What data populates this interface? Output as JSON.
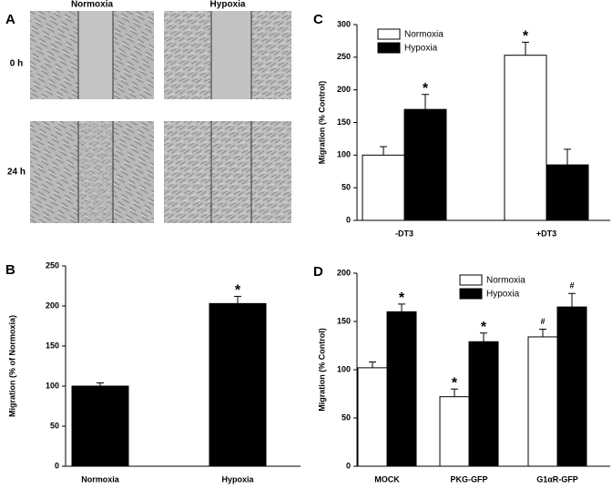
{
  "panel_labels": [
    "A",
    "B",
    "C",
    "D"
  ],
  "image_panel": {
    "columns": [
      "Normoxia",
      "Hypoxia"
    ],
    "rows": [
      "0 h",
      "24 h"
    ]
  },
  "chart_data": [
    {
      "type": "bar",
      "y_label": "Migration (% of Normoxia)",
      "categories": [
        "Normoxia",
        "Hypoxia"
      ],
      "values": [
        100,
        203
      ],
      "errors": [
        4,
        9
      ],
      "annotations": [
        null,
        "*"
      ],
      "color": "#000000",
      "ylim": [
        0,
        250
      ],
      "yticks": [
        0,
        50,
        100,
        150,
        200,
        250
      ]
    },
    {
      "type": "bar",
      "y_label": "Migration (% Control)",
      "categories": [
        "-DT3",
        "+DT3"
      ],
      "series": [
        {
          "name": "Normoxia",
          "color": "#ffffff",
          "values": [
            100,
            253
          ],
          "errors": [
            13,
            20
          ],
          "annotations": [
            null,
            "*"
          ]
        },
        {
          "name": "Hypoxia",
          "color": "#000000",
          "values": [
            170,
            85
          ],
          "errors": [
            23,
            24
          ],
          "annotations": [
            "*",
            null
          ]
        }
      ],
      "ylim": [
        0,
        300
      ],
      "yticks": [
        0,
        50,
        100,
        150,
        200,
        250,
        300
      ],
      "legend": "upper left"
    },
    {
      "type": "bar",
      "y_label": "Migration (% Control)",
      "categories": [
        "MOCK",
        "PKG-GFP",
        "G1αR-GFP"
      ],
      "series": [
        {
          "name": "Normoxia",
          "color": "#ffffff",
          "values": [
            102,
            72,
            134
          ],
          "errors": [
            6,
            8,
            8
          ],
          "annotations": [
            null,
            "*",
            "#"
          ]
        },
        {
          "name": "Hypoxia",
          "color": "#000000",
          "values": [
            160,
            129,
            165
          ],
          "errors": [
            8,
            9,
            14
          ],
          "annotations": [
            "*",
            "*",
            "#"
          ]
        }
      ],
      "ylim": [
        0,
        200
      ],
      "yticks": [
        0,
        50,
        100,
        150,
        200
      ],
      "legend": "upper center"
    }
  ]
}
